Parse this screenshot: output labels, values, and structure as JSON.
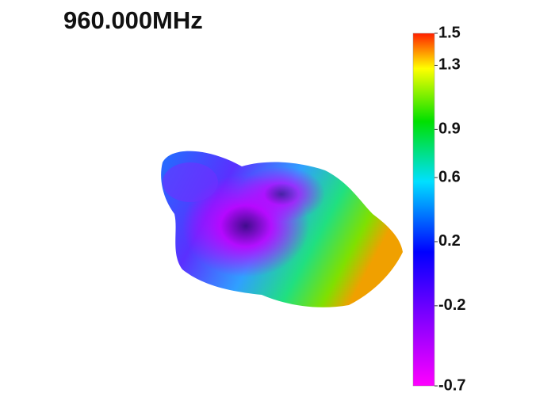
{
  "title": "960.000MHz",
  "colorbar": {
    "clim": [
      -0.7,
      1.5
    ],
    "ticks": [
      1.5,
      1.3,
      0.9,
      0.6,
      0.2,
      -0.2,
      -0.7
    ]
  }
}
